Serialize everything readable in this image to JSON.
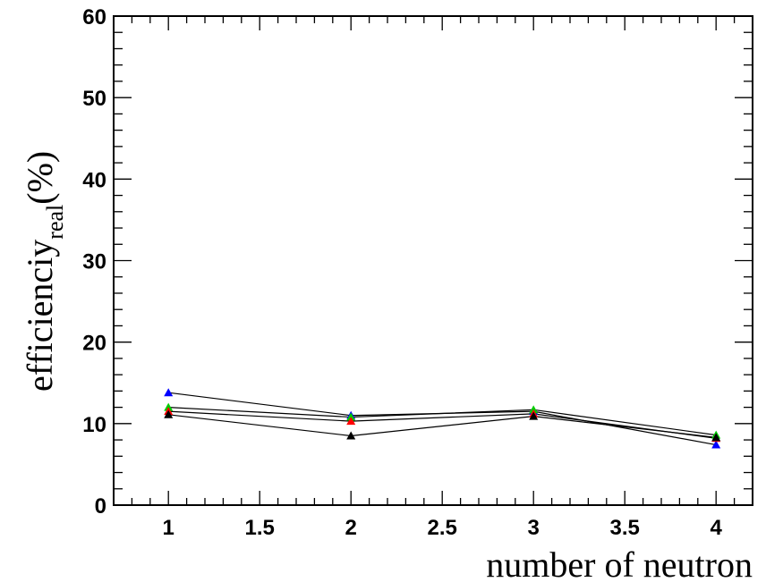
{
  "chart_data": {
    "type": "line",
    "title": "",
    "xlabel": "number of neutron",
    "ylabel": {
      "main": "efficienciy",
      "subscript": "real",
      "unit": "(%)"
    },
    "xlim": [
      0.7,
      4.2
    ],
    "ylim": [
      0,
      60
    ],
    "x_ticks": [
      "1",
      "1.5",
      "2",
      "2.5",
      "3",
      "3.5",
      "4"
    ],
    "y_ticks": [
      "0",
      "10",
      "20",
      "30",
      "40",
      "50",
      "60"
    ],
    "grid": false,
    "legend": "none",
    "line_color": "#000000",
    "marker": "triangle",
    "x": [
      1,
      2,
      3,
      4
    ],
    "series": [
      {
        "color": "#0000ff",
        "values": [
          13.8,
          11.0,
          11.5,
          7.4
        ]
      },
      {
        "color": "#00cc00",
        "values": [
          12.0,
          10.8,
          11.7,
          8.6
        ]
      },
      {
        "color": "#ff0000",
        "values": [
          11.5,
          10.3,
          11.2,
          8.2
        ]
      },
      {
        "color": "#000000",
        "values": [
          11.1,
          8.5,
          10.9,
          8.3
        ]
      }
    ]
  }
}
